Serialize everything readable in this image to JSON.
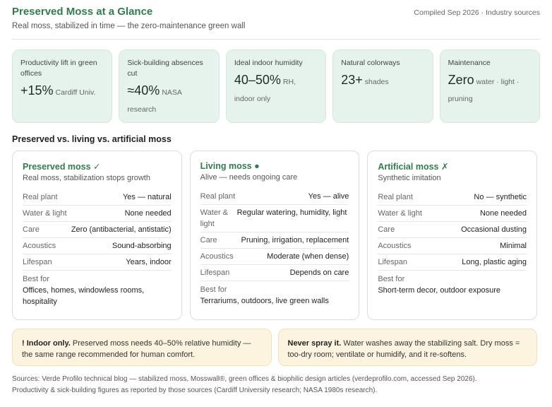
{
  "header": {
    "title": "Preserved Moss at a Glance",
    "subtitle": "Real moss, stabilized in time — the zero-maintenance green wall",
    "compiled": "Compiled Sep 2026 · Industry sources"
  },
  "stats": [
    {
      "label": "Productivity lift in green offices",
      "value": "+15%",
      "unit": "Cardiff Univ."
    },
    {
      "label": "Sick-building absences cut",
      "value": "≈40%",
      "unit": "NASA research"
    },
    {
      "label": "Ideal indoor humidity",
      "value": "40–50%",
      "unit": "RH, indoor only"
    },
    {
      "label": "Natural colorways",
      "value": "23+",
      "unit": "shades"
    },
    {
      "label": "Maintenance",
      "value": "Zero",
      "unit": "water · light · pruning"
    }
  ],
  "comparison": {
    "title": "Preserved vs. living vs. artificial moss",
    "cards": [
      {
        "title": "Preserved moss ✓",
        "subtitle": "Real moss, stabilization stops growth",
        "rows": [
          {
            "key": "Real plant",
            "value": "Yes — natural"
          },
          {
            "key": "Water & light",
            "value": "None needed"
          },
          {
            "key": "Care",
            "value": "Zero (antibacterial, antistatic)"
          },
          {
            "key": "Acoustics",
            "value": "Sound-absorbing"
          },
          {
            "key": "Lifespan",
            "value": "Years, indoor"
          }
        ],
        "best_label": "Best for",
        "best_value": "Offices, homes, windowless rooms, hospitality"
      },
      {
        "title": "Living moss ●",
        "subtitle": "Alive — needs ongoing care",
        "rows": [
          {
            "key": "Real plant",
            "value": "Yes — alive"
          },
          {
            "key": "Water & light",
            "value": "Regular watering, humidity, light"
          },
          {
            "key": "Care",
            "value": "Pruning, irrigation, replacement"
          },
          {
            "key": "Acoustics",
            "value": "Moderate (when dense)"
          },
          {
            "key": "Lifespan",
            "value": "Depends on care"
          }
        ],
        "best_label": "Best for",
        "best_value": "Terrariums, outdoors, live green walls"
      },
      {
        "title": "Artificial moss ✗",
        "subtitle": "Synthetic imitation",
        "rows": [
          {
            "key": "Real plant",
            "value": "No — synthetic"
          },
          {
            "key": "Water & light",
            "value": "None needed"
          },
          {
            "key": "Care",
            "value": "Occasional dusting"
          },
          {
            "key": "Acoustics",
            "value": "Minimal"
          },
          {
            "key": "Lifespan",
            "value": "Long, plastic aging"
          }
        ],
        "best_label": "Best for",
        "best_value": "Short-term decor, outdoor exposure"
      }
    ]
  },
  "notes": [
    {
      "lead": "! Indoor only.",
      "text": " Preserved moss needs 40–50% relative humidity — the same range recommended for human comfort."
    },
    {
      "lead": "Never spray it.",
      "text": " Water washes away the stabilizing salt. Dry moss = too-dry room; ventilate or humidify, and it re-softens."
    }
  ],
  "sources": {
    "line1": "Sources: Verde Profilo technical blog — stabilized moss, Mosswall®, green offices & biophilic design articles (verdeprofilo.com, accessed Sep 2026).",
    "line2": "Productivity & sick-building figures as reported by those sources (Cardiff University research; NASA 1980s research)."
  }
}
